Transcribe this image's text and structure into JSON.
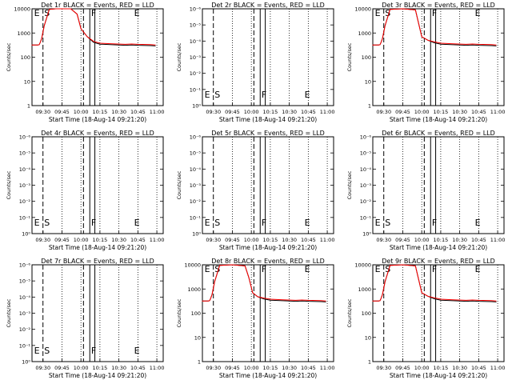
{
  "colors": {
    "events": "#000000",
    "lld": "#ff0000",
    "background": "#ffffff",
    "axes": "#000000"
  },
  "chart_data": [
    {
      "type": "line",
      "title": "Det 1r BLACK = Events, RED = LLD",
      "xlabel": "Start Time (18-Aug-14 09:21:20)",
      "ylabel": "Counts/sec",
      "yscale": "log",
      "x_ticks": [
        "09:30",
        "09:45",
        "10:00",
        "10:15",
        "10:30",
        "10:45",
        "11:00"
      ],
      "y_ticks": [
        "1",
        "10",
        "100",
        "1000",
        "10000"
      ],
      "ylim": [
        1,
        10000
      ],
      "region_labels": [
        "E",
        "S",
        "F",
        "E"
      ],
      "series": [
        {
          "x": [
            "09:21",
            "09:26",
            "09:27",
            "09:28",
            "09:29",
            "09:31",
            "09:35",
            "09:40",
            "09:45",
            "09:52",
            "09:57",
            "10:00",
            "10:05",
            "10:10",
            "10:15",
            "10:25",
            "10:35",
            "10:40",
            "10:45",
            "10:55",
            "10:59"
          ],
          "values": [
            320,
            320,
            330,
            420,
            600,
            2000,
            9500,
            12000,
            12000,
            11000,
            6000,
            1500,
            700,
            450,
            380,
            360,
            340,
            350,
            340,
            330,
            320
          ]
        }
      ]
    },
    {
      "type": "line",
      "title": "Det 2r BLACK = Events, RED = LLD",
      "xlabel": "Start Time (18-Aug-14 09:21:20)",
      "ylabel": "Counts/sec",
      "yscale": "log",
      "x_ticks": [
        "09:30",
        "09:45",
        "10:00",
        "10:15",
        "10:30",
        "10:45",
        "11:00"
      ],
      "y_ticks": [
        "10⁰",
        "10⁻¹",
        "10⁻²",
        "10⁻³",
        "10⁻⁴",
        "10⁻⁵",
        "10⁻⁶"
      ],
      "region_labels": [
        "E",
        "S",
        "F",
        "E"
      ],
      "series": []
    },
    {
      "type": "line",
      "title": "Det 3r BLACK = Events, RED = LLD",
      "xlabel": "Start Time (18-Aug-14 09:21:20)",
      "ylabel": "Counts/sec",
      "yscale": "log",
      "x_ticks": [
        "09:30",
        "09:45",
        "10:00",
        "10:15",
        "10:30",
        "10:45",
        "11:00"
      ],
      "y_ticks": [
        "1",
        "10",
        "100",
        "1000",
        "10000"
      ],
      "ylim": [
        1,
        10000
      ],
      "region_labels": [
        "E",
        "S",
        "F",
        "E"
      ],
      "series": [
        {
          "x": [
            "09:21",
            "09:26",
            "09:27",
            "09:28",
            "09:29",
            "09:31",
            "09:35",
            "09:45",
            "09:55",
            "10:00",
            "10:05",
            "10:10",
            "10:15",
            "10:25",
            "10:35",
            "10:40",
            "10:45",
            "10:55",
            "10:59"
          ],
          "values": [
            320,
            320,
            330,
            420,
            600,
            2000,
            9500,
            12000,
            9000,
            700,
            500,
            430,
            380,
            360,
            340,
            350,
            340,
            330,
            320
          ]
        }
      ]
    },
    {
      "type": "line",
      "title": "Det 4r BLACK = Events, RED = LLD",
      "xlabel": "Start Time (18-Aug-14 09:21:20)",
      "ylabel": "Counts/sec",
      "yscale": "log",
      "x_ticks": [
        "09:30",
        "09:45",
        "10:00",
        "10:15",
        "10:30",
        "10:45",
        "11:00"
      ],
      "y_ticks": [
        "10⁰",
        "10⁻¹",
        "10⁻²",
        "10⁻³",
        "10⁻⁴",
        "10⁻⁵",
        "10⁻⁶"
      ],
      "region_labels": [
        "E",
        "S",
        "F",
        "E"
      ],
      "series": []
    },
    {
      "type": "line",
      "title": "Det 5r BLACK = Events, RED = LLD",
      "xlabel": "Start Time (18-Aug-14 09:21:20)",
      "ylabel": "Counts/sec",
      "yscale": "log",
      "x_ticks": [
        "09:30",
        "09:45",
        "10:00",
        "10:15",
        "10:30",
        "10:45",
        "11:00"
      ],
      "y_ticks": [
        "10⁰",
        "10⁻¹",
        "10⁻²",
        "10⁻³",
        "10⁻⁴",
        "10⁻⁵",
        "10⁻⁶"
      ],
      "region_labels": [
        "E",
        "S",
        "F",
        "E"
      ],
      "series": []
    },
    {
      "type": "line",
      "title": "Det 6r BLACK = Events, RED = LLD",
      "xlabel": "Start Time (18-Aug-14 09:21:20)",
      "ylabel": "Counts/sec",
      "yscale": "log",
      "x_ticks": [
        "09:30",
        "09:45",
        "10:00",
        "10:15",
        "10:30",
        "10:45",
        "11:00"
      ],
      "y_ticks": [
        "10⁰",
        "10⁻¹",
        "10⁻²",
        "10⁻³",
        "10⁻⁴",
        "10⁻⁵",
        "10⁻⁶"
      ],
      "region_labels": [
        "E",
        "S",
        "F",
        "E"
      ],
      "series": []
    },
    {
      "type": "line",
      "title": "Det 7r BLACK = Events, RED = LLD",
      "xlabel": "Start Time (18-Aug-14 09:21:20)",
      "ylabel": "Counts/sec",
      "yscale": "log",
      "x_ticks": [
        "09:30",
        "09:45",
        "10:00",
        "10:15",
        "10:30",
        "10:45",
        "11:00"
      ],
      "y_ticks": [
        "10⁰",
        "10⁻¹",
        "10⁻²",
        "10⁻³",
        "10⁻⁴",
        "10⁻⁵",
        "10⁻⁶"
      ],
      "region_labels": [
        "E",
        "S",
        "F",
        "E"
      ],
      "series": []
    },
    {
      "type": "line",
      "title": "Det 8r BLACK = Events, RED = LLD",
      "xlabel": "Start Time (18-Aug-14 09:21:20)",
      "ylabel": "Counts/sec",
      "yscale": "log",
      "x_ticks": [
        "09:30",
        "09:45",
        "10:00",
        "10:15",
        "10:30",
        "10:45",
        "11:00"
      ],
      "y_ticks": [
        "1",
        "10",
        "100",
        "1000",
        "10000"
      ],
      "ylim": [
        1,
        10000
      ],
      "region_labels": [
        "E",
        "S",
        "F",
        "E"
      ],
      "series": [
        {
          "x": [
            "09:21",
            "09:26",
            "09:27",
            "09:28",
            "09:29",
            "09:31",
            "09:35",
            "09:45",
            "09:55",
            "09:58",
            "10:01",
            "10:05",
            "10:10",
            "10:15",
            "10:25",
            "10:35",
            "10:40",
            "10:45",
            "10:55",
            "10:59"
          ],
          "values": [
            320,
            320,
            330,
            420,
            600,
            2000,
            9500,
            12000,
            9000,
            3000,
            700,
            480,
            420,
            380,
            360,
            340,
            350,
            340,
            330,
            320
          ]
        }
      ]
    },
    {
      "type": "line",
      "title": "Det 9r BLACK = Events, RED = LLD",
      "xlabel": "Start Time (18-Aug-14 09:21:20)",
      "ylabel": "Counts/sec",
      "yscale": "log",
      "x_ticks": [
        "09:30",
        "09:45",
        "10:00",
        "10:15",
        "10:30",
        "10:45",
        "11:00"
      ],
      "y_ticks": [
        "1",
        "10",
        "100",
        "1000",
        "10000"
      ],
      "ylim": [
        1,
        10000
      ],
      "region_labels": [
        "E",
        "S",
        "F",
        "E"
      ],
      "series": [
        {
          "x": [
            "09:21",
            "09:26",
            "09:27",
            "09:28",
            "09:29",
            "09:31",
            "09:35",
            "09:45",
            "09:55",
            "10:00",
            "10:05",
            "10:10",
            "10:15",
            "10:25",
            "10:35",
            "10:40",
            "10:45",
            "10:55",
            "10:59"
          ],
          "values": [
            320,
            320,
            330,
            420,
            600,
            2000,
            9500,
            12000,
            9000,
            700,
            500,
            430,
            380,
            360,
            340,
            350,
            340,
            330,
            320
          ]
        }
      ]
    }
  ]
}
